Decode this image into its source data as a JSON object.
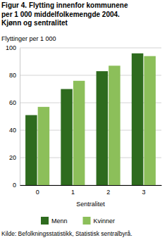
{
  "chart_data": {
    "type": "bar",
    "title": [
      "Figur 4. Flytting innenfor kommunene",
      "per 1 000 middelfolkemengde 2004.",
      "Kjønn og sentralitet"
    ],
    "y_label": "Flyttinger per 1 000",
    "x_label": "Sentralitet",
    "categories": [
      "0",
      "1",
      "2",
      "3"
    ],
    "series": [
      {
        "name": "Menn",
        "color": "#2e6b1e",
        "values": [
          51,
          70,
          83,
          96
        ]
      },
      {
        "name": "Kvinner",
        "color": "#8cbf5a",
        "values": [
          57,
          76,
          87,
          94
        ]
      }
    ],
    "ylim": [
      0,
      100
    ],
    "yticks": [
      0,
      20,
      40,
      60,
      80,
      100
    ],
    "grid": true,
    "legend": "bottom",
    "source": "Kilde: Befolkningsstatistikk, Statistisk sentralbyrå."
  }
}
